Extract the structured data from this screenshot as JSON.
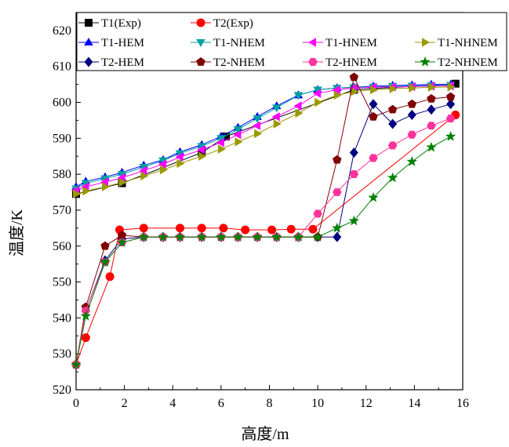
{
  "chart_data": {
    "type": "line",
    "title": "",
    "xlabel": "高度/m",
    "ylabel": "温度/K",
    "xlim": [
      0,
      16
    ],
    "ylim": [
      520,
      625
    ],
    "xticks": [
      0,
      2,
      4,
      6,
      8,
      10,
      12,
      14,
      16
    ],
    "yticks": [
      520,
      530,
      540,
      550,
      560,
      570,
      580,
      590,
      600,
      610,
      620
    ],
    "grid": false,
    "legend_position": "top",
    "series": [
      {
        "name": "T1(Exp)",
        "color": "#000000",
        "marker": "square",
        "x": [
          0,
          1.9,
          5.2,
          6.2,
          11.5,
          15.7
        ],
        "y": [
          574.5,
          577.5,
          586,
          590.5,
          603.5,
          605.2
        ]
      },
      {
        "name": "T2(Exp)",
        "color": "#ff0000",
        "marker": "circle",
        "x": [
          0,
          0.4,
          1.4,
          1.8,
          2.8,
          4.3,
          5.2,
          6.1,
          7.0,
          8.1,
          8.9,
          9.8,
          15.7
        ],
        "y": [
          527,
          534.5,
          551.5,
          564.5,
          565,
          565,
          565,
          565,
          564.5,
          564.5,
          564.7,
          564.7,
          596.5
        ]
      },
      {
        "name": "T1-HEM",
        "color": "#0000ff",
        "marker": "triangle-up",
        "x": [
          0,
          0.4,
          1.2,
          1.9,
          2.8,
          3.6,
          4.3,
          5.2,
          6.0,
          6.7,
          7.5,
          8.3,
          9.2,
          10.0,
          10.8,
          11.5,
          12.3,
          13.1,
          13.9,
          14.7,
          15.5
        ],
        "y": [
          576.5,
          578,
          579.2,
          580.5,
          582.5,
          584,
          586.2,
          588.2,
          590.5,
          593,
          596,
          599,
          602,
          603.5,
          604,
          604.2,
          604.5,
          604.7,
          604.8,
          605,
          605
        ]
      },
      {
        "name": "T1-NHEM",
        "color": "#00a0a0",
        "marker": "triangle-down",
        "x": [
          0,
          0.4,
          1.2,
          1.9,
          2.8,
          3.6,
          4.3,
          5.2,
          6.0,
          6.7,
          7.5,
          8.3,
          9.2,
          10.0,
          10.8,
          11.5,
          12.3,
          13.1,
          13.9,
          14.7,
          15.5
        ],
        "y": [
          576,
          577.5,
          578.8,
          580,
          582,
          583.8,
          585.8,
          587.8,
          590,
          592.5,
          595.5,
          598.5,
          602,
          603.5,
          604,
          604.2,
          604.3,
          604.5,
          604.6,
          604.7,
          604.8
        ]
      },
      {
        "name": "T1-HNEM",
        "color": "#ff00ff",
        "marker": "triangle-left",
        "x": [
          0,
          0.4,
          1.2,
          1.9,
          2.8,
          3.6,
          4.3,
          5.2,
          6.0,
          6.7,
          7.5,
          8.3,
          9.2,
          10.0,
          10.8,
          11.5,
          12.3,
          13.1,
          13.9,
          14.7,
          15.5
        ],
        "y": [
          575.5,
          576.5,
          577.8,
          579,
          581,
          582.8,
          584.8,
          586.8,
          588.8,
          591,
          593.5,
          596,
          599,
          602.5,
          603.5,
          604,
          604.2,
          604.3,
          604.4,
          604.5,
          604.6
        ]
      },
      {
        "name": "T1-NHNEM",
        "color": "#999900",
        "marker": "triangle-right",
        "x": [
          0,
          0.4,
          1.2,
          1.9,
          2.8,
          3.6,
          4.3,
          5.2,
          6.0,
          6.7,
          7.5,
          8.3,
          9.2,
          10.0,
          10.8,
          11.5,
          12.3,
          13.1,
          13.9,
          14.7,
          15.5
        ],
        "y": [
          574.5,
          575.3,
          576.5,
          577.7,
          579.5,
          581.2,
          583,
          585,
          587,
          589,
          591.3,
          594,
          597,
          600,
          602,
          603,
          603.5,
          603.8,
          604,
          604.2,
          604.3
        ]
      },
      {
        "name": "T2-HEM",
        "color": "#000080",
        "marker": "diamond",
        "x": [
          0,
          0.4,
          1.2,
          1.9,
          2.8,
          3.6,
          4.3,
          5.2,
          6.0,
          6.7,
          7.5,
          8.3,
          9.2,
          10.0,
          10.8,
          11.5,
          12.3,
          13.1,
          13.9,
          14.7,
          15.5
        ],
        "y": [
          527,
          542,
          556,
          562,
          562.5,
          562.5,
          562.5,
          562.5,
          562.5,
          562.5,
          562.5,
          562.5,
          562.5,
          562.5,
          562.5,
          586,
          599.5,
          594,
          596.5,
          598,
          599.5
        ]
      },
      {
        "name": "T2-NHEM",
        "color": "#800000",
        "marker": "pentagon",
        "x": [
          0,
          0.4,
          1.2,
          1.9,
          2.8,
          3.6,
          4.3,
          5.2,
          6.0,
          6.7,
          7.5,
          8.3,
          9.2,
          10.0,
          10.8,
          11.5,
          12.3,
          13.1,
          13.9,
          14.7,
          15.5
        ],
        "y": [
          527,
          543,
          560,
          563,
          562.5,
          562.5,
          562.5,
          562.5,
          562.5,
          562.5,
          562.5,
          562.5,
          562.5,
          562.5,
          584,
          607,
          596,
          598,
          599.5,
          601,
          601.5
        ]
      },
      {
        "name": "T2-HNEM",
        "color": "#ff3399",
        "marker": "hexagon",
        "x": [
          0,
          0.4,
          1.2,
          1.9,
          2.8,
          3.6,
          4.3,
          5.2,
          6.0,
          6.7,
          7.5,
          8.3,
          9.2,
          10.0,
          10.8,
          11.5,
          12.3,
          13.1,
          13.9,
          14.7,
          15.5
        ],
        "y": [
          527,
          542,
          555.5,
          561,
          562.5,
          562.5,
          562.5,
          562.5,
          562.5,
          562.5,
          562.5,
          562.5,
          562.5,
          569,
          575,
          580,
          584.5,
          588,
          591,
          593.5,
          595.5
        ]
      },
      {
        "name": "T2-NHNEM",
        "color": "#008000",
        "marker": "star",
        "x": [
          0,
          0.4,
          1.2,
          1.9,
          2.8,
          3.6,
          4.3,
          5.2,
          6.0,
          6.7,
          7.5,
          8.3,
          9.2,
          10.0,
          10.8,
          11.5,
          12.3,
          13.1,
          13.9,
          14.7,
          15.5
        ],
        "y": [
          527,
          540.5,
          555.5,
          561,
          562.5,
          562.5,
          562.5,
          562.5,
          562.5,
          562.5,
          562.5,
          562.5,
          562.5,
          562.5,
          565,
          567,
          573.5,
          579,
          583.5,
          587.5,
          590.5
        ]
      }
    ]
  }
}
